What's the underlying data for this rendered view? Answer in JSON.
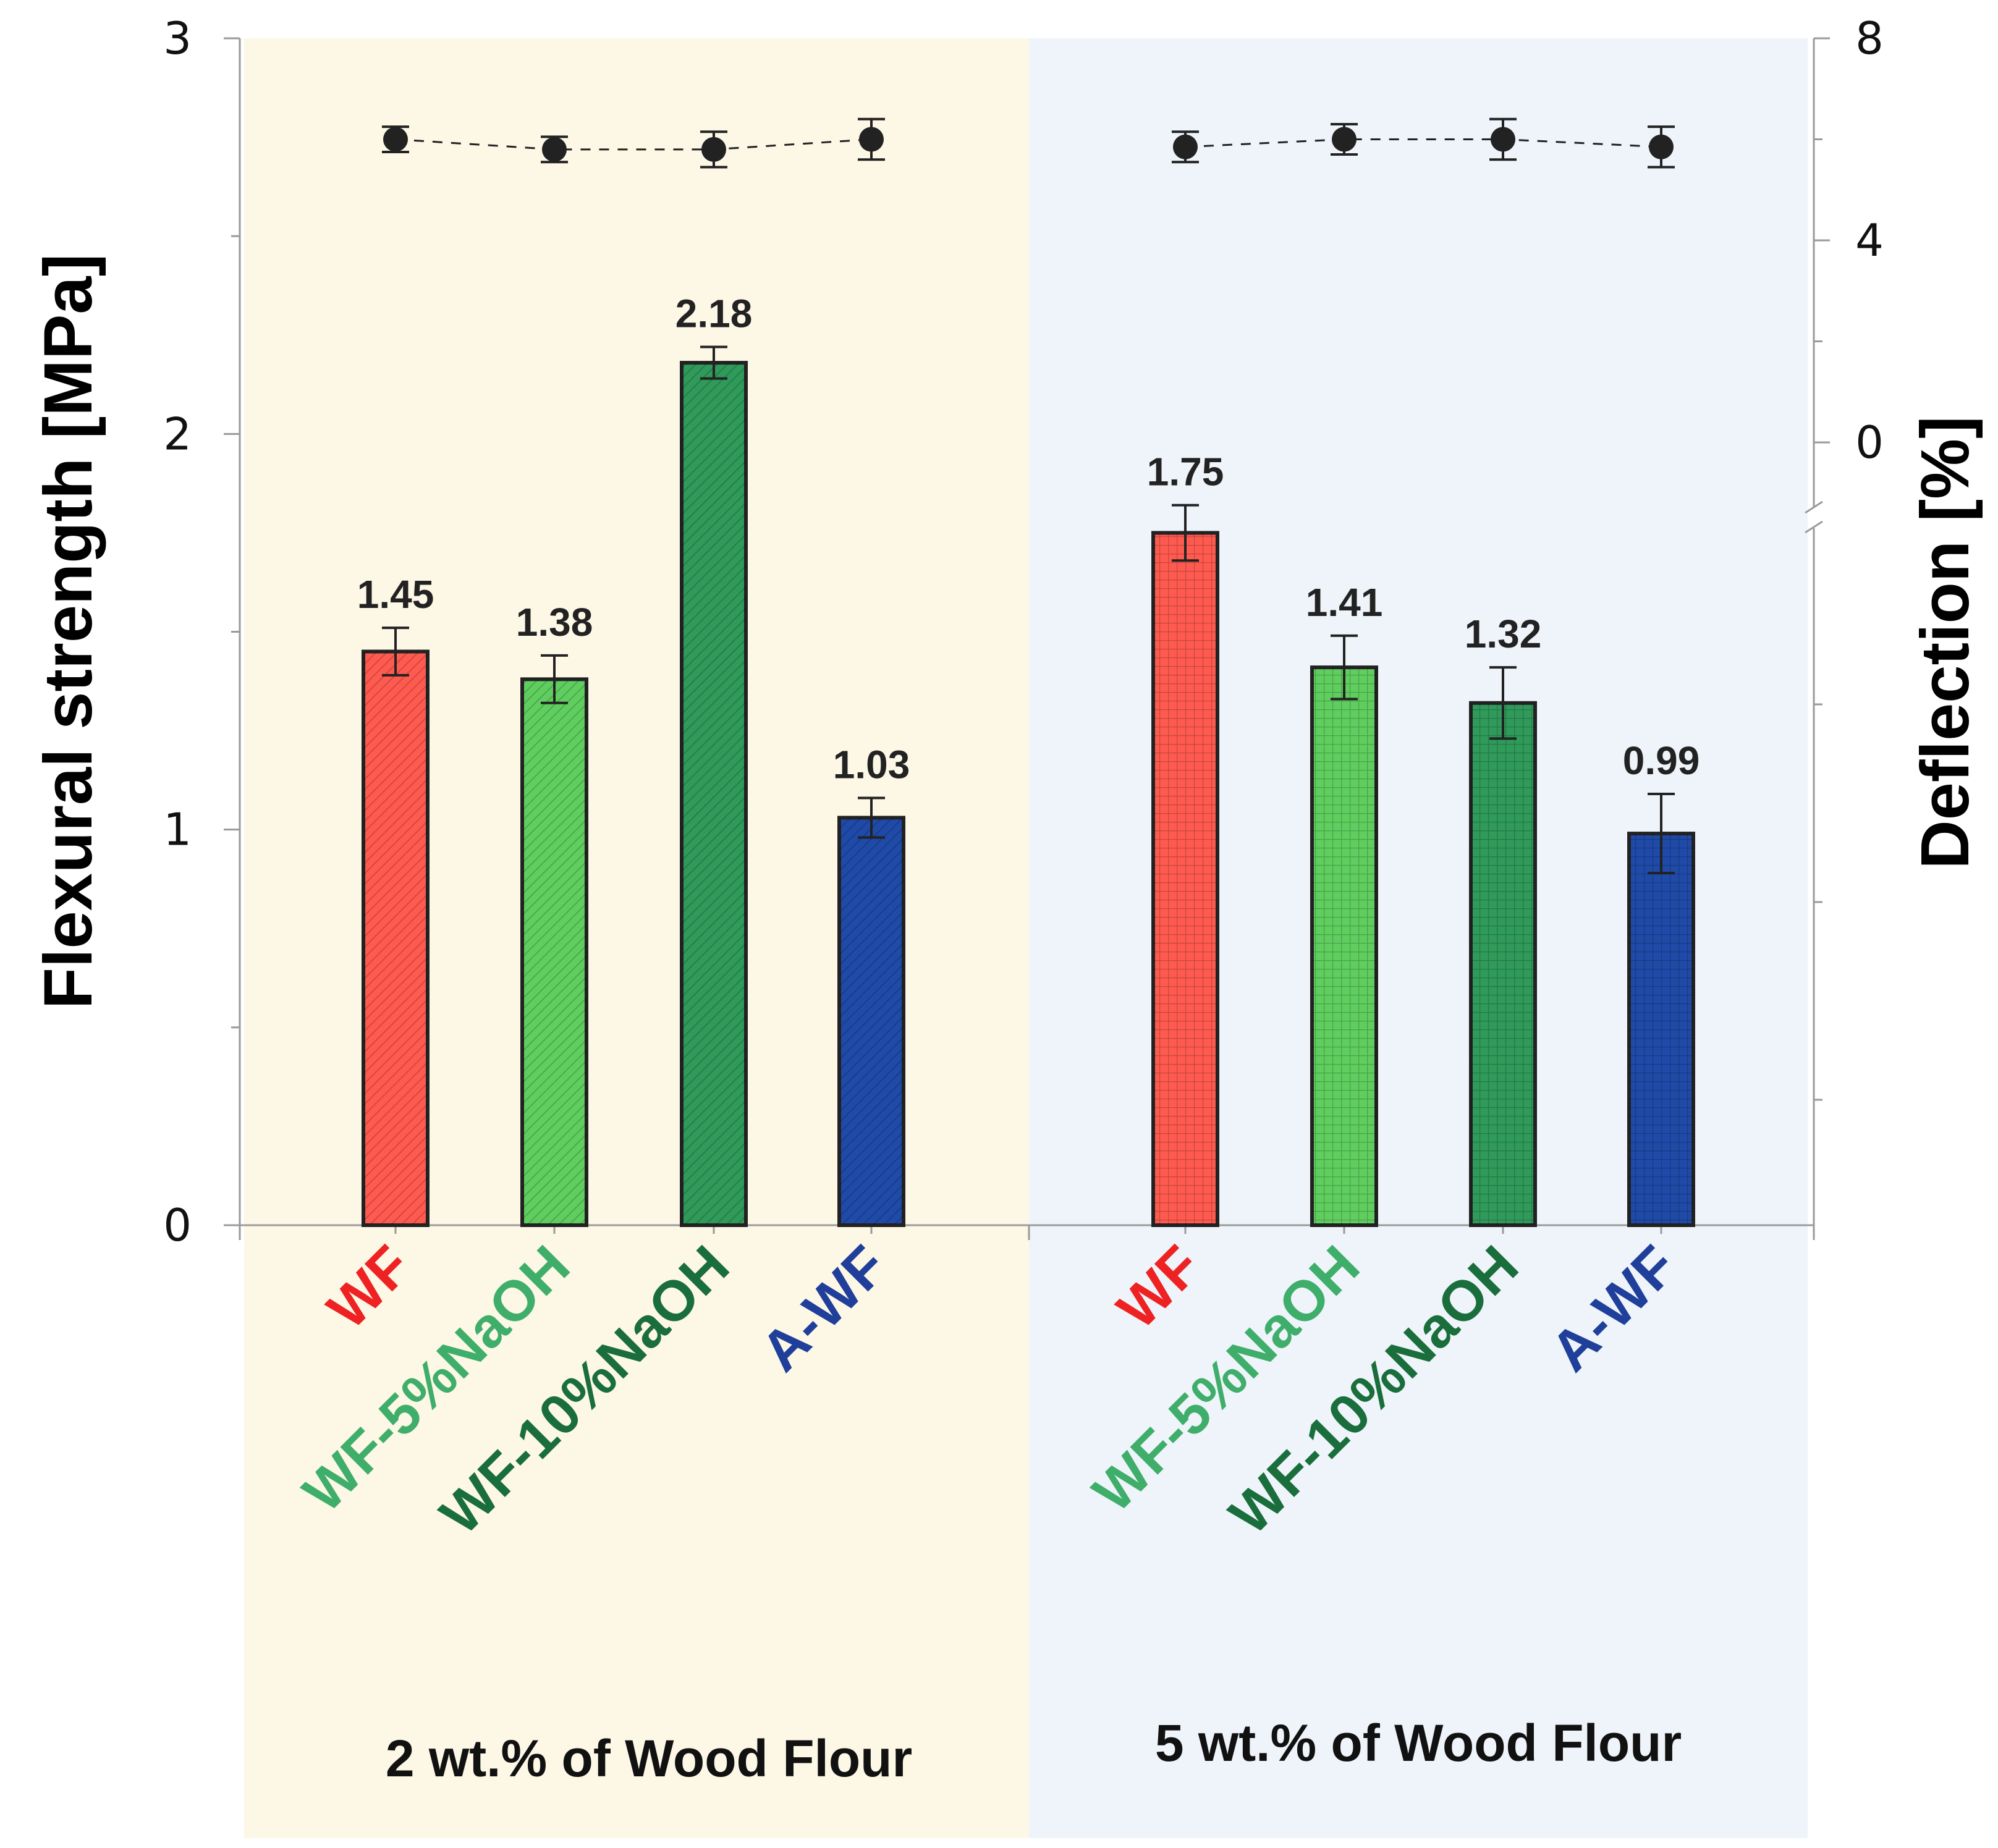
{
  "chart_data": {
    "type": "bar",
    "title": "",
    "ylabel": "Flexural strength [MPa]",
    "y2label": "Deflection [%]",
    "ylim": [
      0,
      3
    ],
    "yticks": [
      "0",
      "1",
      "2",
      "3"
    ],
    "y2lim": [
      -4,
      8
    ],
    "y2ticks": [
      "0",
      "4",
      "8"
    ],
    "colors": {
      "WF": "#ff5a4f",
      "WF-5%NaOH": "#5fce5f",
      "WF-10%NaOH": "#2f9a5a",
      "A-WF": "#1f4aa8",
      "label_WF": "#ee2222",
      "label_WF-5%NaOH": "#3fae6a",
      "label_WF-10%NaOH": "#1a6e3c",
      "label_A-WF": "#1f3f9a",
      "bg_group1": "#fdf7e6",
      "bg_group2": "#eef4fa",
      "dot": "#222222"
    },
    "groups": [
      {
        "label": "2 wt.% of Wood Flour",
        "categories": [
          "WF",
          "WF-5%NaOH",
          "WF-10%NaOH",
          "A-WF"
        ],
        "values": [
          1.45,
          1.38,
          2.18,
          1.03
        ],
        "value_labels": [
          "1.45",
          "1.38",
          "2.18",
          "1.03"
        ],
        "errors": [
          0.06,
          0.06,
          0.04,
          0.05
        ],
        "deflection": [
          6.0,
          5.8,
          5.8,
          6.0
        ],
        "deflection_errors": [
          0.25,
          0.25,
          0.35,
          0.4
        ]
      },
      {
        "label": "5 wt.% of Wood Flour",
        "categories": [
          "WF",
          "WF-5%NaOH",
          "WF-10%NaOH",
          "A-WF"
        ],
        "values": [
          1.75,
          1.41,
          1.32,
          0.99
        ],
        "value_labels": [
          "1.75",
          "1.41",
          "1.32",
          "0.99"
        ],
        "errors": [
          0.07,
          0.08,
          0.09,
          0.1
        ],
        "deflection": [
          5.85,
          6.0,
          6.0,
          5.85
        ],
        "deflection_errors": [
          0.3,
          0.3,
          0.4,
          0.4
        ]
      }
    ]
  }
}
